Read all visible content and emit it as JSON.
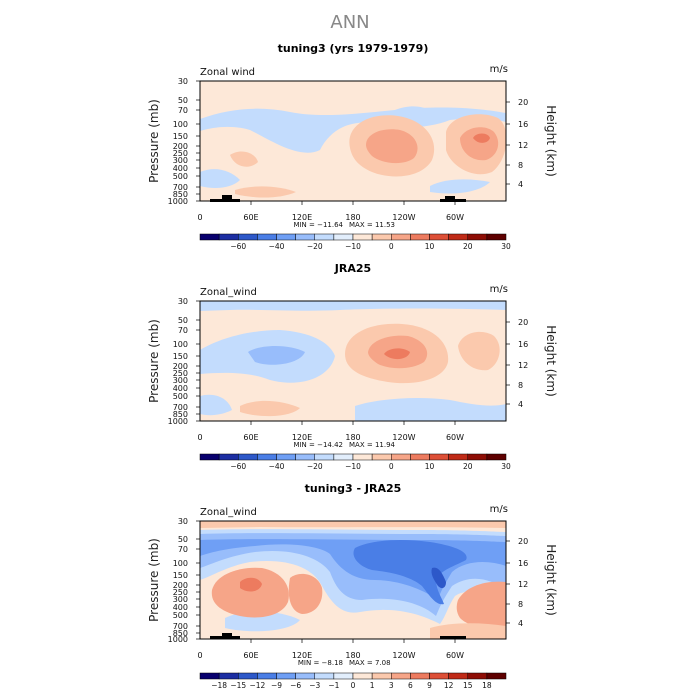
{
  "title": "ANN",
  "chart_data": [
    {
      "type": "heatmap",
      "title": "tuning3 (yrs 1979-1979)",
      "variable_label": "Zonal wind",
      "units": "m/s",
      "ylabel": "Pressure (mb)",
      "ylabel_right": "Height (km)",
      "x_ticks": [
        "0",
        "60E",
        "120E",
        "180",
        "120W",
        "60W"
      ],
      "y_ticks": [
        "30",
        "50",
        "70",
        "100",
        "150",
        "200",
        "250",
        "300",
        "400",
        "500",
        "700",
        "850",
        "1000"
      ],
      "y_ticks_right": [
        "20",
        "16",
        "12",
        "8",
        "4"
      ],
      "min_text": "MIN = −11.64",
      "max_text": "MAX = 11.53",
      "colorbar_labels": [
        "−60",
        "−40",
        "−20",
        "−10",
        "0",
        "10",
        "20",
        "30"
      ]
    },
    {
      "type": "heatmap",
      "title": "JRA25",
      "variable_label": "Zonal_wind",
      "units": "m/s",
      "ylabel": "Pressure (mb)",
      "ylabel_right": "Height (km)",
      "x_ticks": [
        "0",
        "60E",
        "120E",
        "180",
        "120W",
        "60W"
      ],
      "y_ticks": [
        "30",
        "50",
        "70",
        "100",
        "150",
        "200",
        "250",
        "300",
        "400",
        "500",
        "700",
        "850",
        "1000"
      ],
      "y_ticks_right": [
        "20",
        "16",
        "12",
        "8",
        "4"
      ],
      "min_text": "MIN = −14.42",
      "max_text": "MAX = 11.94",
      "colorbar_labels": [
        "−60",
        "−40",
        "−20",
        "−10",
        "0",
        "10",
        "20",
        "30"
      ]
    },
    {
      "type": "heatmap",
      "title": "tuning3 - JRA25",
      "variable_label": "Zonal_wind",
      "units": "m/s",
      "ylabel": "Pressure (mb)",
      "ylabel_right": "Height (km)",
      "x_ticks": [
        "0",
        "60E",
        "120E",
        "180",
        "120W",
        "60W"
      ],
      "y_ticks": [
        "30",
        "50",
        "70",
        "100",
        "150",
        "200",
        "250",
        "300",
        "400",
        "500",
        "700",
        "850",
        "1000"
      ],
      "y_ticks_right": [
        "20",
        "16",
        "12",
        "8",
        "4"
      ],
      "min_text": "MIN = −8.18",
      "max_text": "MAX = 7.08",
      "colorbar_labels": [
        "−18",
        "−15",
        "−12",
        "−9",
        "−6",
        "−3",
        "−1",
        "0",
        "1",
        "3",
        "6",
        "9",
        "12",
        "15",
        "18"
      ]
    }
  ],
  "colors": {
    "palette": [
      "#08006e",
      "#1c2ea3",
      "#2d58c9",
      "#4a7ee6",
      "#6f9ff5",
      "#98bdfb",
      "#c3dcfd",
      "#e2eefc",
      "#fde8d8",
      "#fbc9ad",
      "#f6a588",
      "#ed7b5f",
      "#dd4f36",
      "#c02a17",
      "#8e0d05",
      "#5e0000"
    ],
    "zero_band": "#fde8d8"
  }
}
